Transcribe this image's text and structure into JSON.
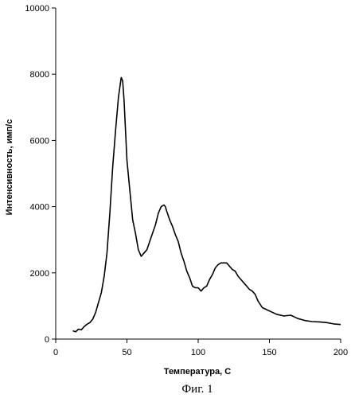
{
  "chart_data": {
    "type": "line",
    "title": "",
    "xlabel": "Температура, С",
    "ylabel": "Интенсивность, имп/с",
    "xlim": [
      0,
      200
    ],
    "ylim": [
      0,
      10000
    ],
    "xticks": [
      0,
      50,
      100,
      150,
      200
    ],
    "yticks": [
      0,
      2000,
      4000,
      6000,
      8000,
      10000
    ],
    "grid": false,
    "legend": "none",
    "line_color": "#000000",
    "series": [
      {
        "x": [
          12,
          14,
          16,
          18,
          20,
          22,
          24,
          26,
          28,
          30,
          32,
          34,
          36,
          38,
          40,
          42,
          44,
          46,
          47,
          48,
          50,
          52,
          54,
          56,
          58,
          60,
          62,
          64,
          66,
          68,
          70,
          72,
          74,
          76,
          77,
          78,
          80,
          82,
          84,
          86,
          88,
          90,
          92,
          94,
          96,
          98,
          100,
          102,
          104,
          106,
          108,
          110,
          112,
          114,
          116,
          118,
          120,
          122,
          124,
          126,
          128,
          130,
          132,
          134,
          136,
          138,
          140,
          142,
          145,
          150,
          155,
          160,
          165,
          170,
          175,
          180,
          185,
          190,
          195,
          200
        ],
        "y": [
          250,
          220,
          300,
          280,
          380,
          450,
          500,
          600,
          800,
          1100,
          1400,
          1900,
          2600,
          3800,
          5200,
          6300,
          7300,
          7900,
          7800,
          7200,
          5400,
          4500,
          3600,
          3200,
          2700,
          2500,
          2600,
          2700,
          2950,
          3200,
          3450,
          3800,
          4000,
          4050,
          4000,
          3850,
          3600,
          3400,
          3150,
          2950,
          2600,
          2350,
          2050,
          1850,
          1600,
          1550,
          1550,
          1450,
          1550,
          1600,
          1800,
          1950,
          2150,
          2250,
          2300,
          2300,
          2300,
          2200,
          2100,
          2050,
          1900,
          1800,
          1700,
          1600,
          1500,
          1450,
          1350,
          1150,
          950,
          850,
          750,
          700,
          720,
          620,
          560,
          530,
          520,
          500,
          460,
          440
        ]
      }
    ]
  },
  "caption": "Фиг. 1"
}
